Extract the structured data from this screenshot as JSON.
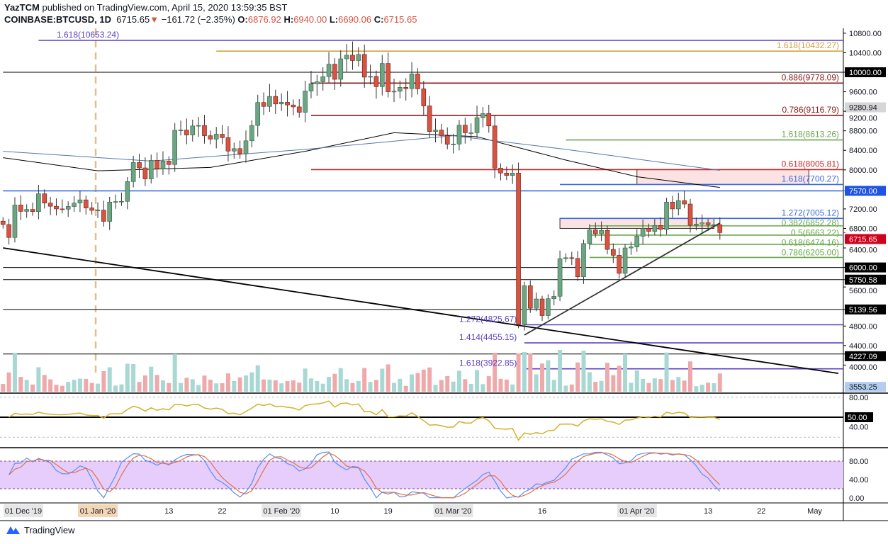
{
  "header": {
    "author": "YazTCM",
    "published": "published on TradingView.com, April 15, 2020 13:59:35 BST",
    "symbol": "COINBASE:BTCUSD, 1D",
    "last": "6715.65",
    "change": "−161.72 (−2.35%)",
    "o_label": "O:",
    "o": "6876.92",
    "h_label": "H:",
    "h": "6940.00",
    "l_label": "L:",
    "l": "6690.06",
    "c_label": "C:",
    "c": "6715.65"
  },
  "footer": {
    "brand": "TradingView"
  },
  "colors": {
    "up": "#6ba583",
    "down": "#d75442",
    "vol_up": "#a8d8d4",
    "vol_down": "#f0a9ab",
    "rsi": "#d4b12b",
    "stoch_k": "#5b8ff0",
    "stoch_d": "#e0704a",
    "stoch_band": "#e6cdfb"
  },
  "chart_data": {
    "type": "candlestick",
    "ylim": [
      3450,
      10900
    ],
    "start_date": "2019-12-16",
    "close": [
      6880,
      6615,
      7280,
      7150,
      7190,
      7145,
      7510,
      7320,
      7255,
      7200,
      7195,
      7250,
      7320,
      7385,
      7220,
      7170,
      7175,
      6945,
      7340,
      7350,
      7355,
      7760,
      8150,
      8040,
      7815,
      8195,
      8020,
      8180,
      8110,
      8810,
      8815,
      8715,
      8900,
      8910,
      8700,
      8630,
      8730,
      8660,
      8385,
      8435,
      8330,
      8595,
      8910,
      9380,
      9300,
      9505,
      9350,
      9385,
      9330,
      9290,
      9180,
      9615,
      9765,
      9805,
      9910,
      10165,
      9855,
      10275,
      10350,
      10240,
      10365,
      9900,
      9915,
      9705,
      10180,
      9600,
      9610,
      9690,
      9665,
      9965,
      9660,
      9310,
      8785,
      8815,
      8700,
      8525,
      8530,
      8915,
      8760,
      8760,
      9070,
      9155,
      8900,
      8035,
      7935,
      7885,
      7935,
      4830,
      5625,
      5165,
      5355,
      5015,
      5360,
      5410,
      6180,
      6200,
      6185,
      5810,
      6490,
      6770,
      6690,
      6760,
      6370,
      6250,
      5880,
      6400,
      6420,
      6640,
      6800,
      6740,
      6860,
      6780,
      7340,
      7200,
      7370,
      7300,
      6865,
      6890,
      6915,
      6876.92,
      6876.92,
      6715.65
    ],
    "x_ticks": [
      {
        "label": "01 Dec '19",
        "date": "2019-11-19"
      },
      {
        "label": "01 Jan '20",
        "date": "2020-01-01"
      },
      {
        "label": "13",
        "date": "2020-01-13"
      },
      {
        "label": "22",
        "date": "2020-01-22"
      },
      {
        "label": "01 Feb '20",
        "date": "2020-02-01"
      },
      {
        "label": "10",
        "date": "2020-02-10"
      },
      {
        "label": "19",
        "date": "2020-02-19"
      },
      {
        "label": "01 Mar '20",
        "date": "2020-03-01"
      },
      {
        "label": "16",
        "date": "2020-03-16"
      },
      {
        "label": "01 Apr '20",
        "date": "2020-04-01"
      },
      {
        "label": "13",
        "date": "2020-04-13"
      },
      {
        "label": "22",
        "date": "2020-04-22"
      },
      {
        "label": "May",
        "date": "2020-05-01"
      }
    ],
    "y_ticks": [
      "10800.00",
      "10400.00",
      "9600.00",
      "9200.00",
      "8800.00",
      "8400.00",
      "8000.00",
      "7200.00",
      "6800.00",
      "6400.00",
      "5600.00",
      "4800.00",
      "4400.00",
      "4000.00"
    ],
    "price_badges": [
      {
        "price": 10000,
        "label": "10000.00",
        "bg": "#000000",
        "fg": "#ffffff"
      },
      {
        "price": 9280.94,
        "label": "9280.94",
        "bg": "#d6d6d6",
        "fg": "#131722"
      },
      {
        "price": 7570,
        "label": "7570.00",
        "bg": "#1e53e5",
        "fg": "#ffffff"
      },
      {
        "price": 6715.65,
        "label": "6715.65",
        "bg": "#d0021b",
        "fg": "#ffffff"
      },
      {
        "price": 6000,
        "label": "6000.00",
        "bg": "#000000",
        "fg": "#ffffff"
      },
      {
        "price": 5750.58,
        "label": "5750.58",
        "bg": "#000000",
        "fg": "#ffffff"
      },
      {
        "price": 5139.56,
        "label": "5139.56",
        "bg": "#000000",
        "fg": "#ffffff"
      },
      {
        "price": 4227.09,
        "label": "4227.09",
        "bg": "#000000",
        "fg": "#ffffff"
      },
      {
        "price": 3553.25,
        "label": "3553.25",
        "bg": "#b2cdef",
        "fg": "#131722"
      }
    ],
    "levels": [
      {
        "price": 10653.24,
        "label": "1.618(10653.24)",
        "color": "#5c3fc4",
        "from": "2019-12-22",
        "label_side": "left"
      },
      {
        "price": 10432.27,
        "label": "1.618(10432.27)",
        "color": "#d4a23a",
        "from": "2020-01-21",
        "label_side": "right"
      },
      {
        "price": 10000,
        "label": "",
        "color": "#000000",
        "from": "2019-12-16",
        "label_side": "right"
      },
      {
        "price": 9778.09,
        "label": "0.886(9778.09)",
        "color": "#8b1a1a",
        "from": "2020-02-06",
        "label_side": "right"
      },
      {
        "price": 9116.79,
        "label": "0.786(9116.79)",
        "color": "#8b1a1a",
        "from": "2020-02-06",
        "label_side": "right"
      },
      {
        "price": 8613.26,
        "label": "1.618(8613.26)",
        "color": "#6aa84f",
        "from": "2020-03-20",
        "label_side": "right"
      },
      {
        "price": 8005.81,
        "label": "0.618(8005.81)",
        "color": "#c62828",
        "from": "2020-02-06",
        "label_side": "right"
      },
      {
        "price": 7700.27,
        "label": "1.618(7700.27)",
        "color": "#3d6be0",
        "from": "2020-03-19",
        "label_side": "right"
      },
      {
        "price": 7570,
        "label": "",
        "color": "#3d6be0",
        "from": "2019-12-16",
        "label_side": "right"
      },
      {
        "price": 7005.12,
        "label": "1.272(7005.12)",
        "color": "#3d6be0",
        "from": "2020-03-19",
        "label_side": "right"
      },
      {
        "price": 6852.28,
        "label": "0.382(6852.28)",
        "color": "#6aa84f",
        "from": "2020-03-24",
        "label_side": "right"
      },
      {
        "price": 6663.22,
        "label": "0.5(6663.22)",
        "color": "#6aa84f",
        "from": "2020-03-24",
        "label_side": "right"
      },
      {
        "price": 6474.16,
        "label": "0.618(6474.16)",
        "color": "#6aa84f",
        "from": "2020-03-24",
        "label_side": "right"
      },
      {
        "price": 6205.0,
        "label": "0.786(6205.00)",
        "color": "#6aa84f",
        "from": "2020-03-24",
        "label_side": "right"
      },
      {
        "price": 6000,
        "label": "",
        "color": "#000000",
        "from": "2019-12-16",
        "label_side": "right"
      },
      {
        "price": 5750.58,
        "label": "",
        "color": "#000000",
        "from": "2019-12-16",
        "label_side": "right"
      },
      {
        "price": 5139.56,
        "label": "",
        "color": "#000000",
        "from": "2019-12-16",
        "label_side": "right"
      },
      {
        "price": 4825.67,
        "label": "1.272(4825.67)",
        "color": "#5c3fc4",
        "from": "2020-03-13",
        "label_side": "left"
      },
      {
        "price": 4455.15,
        "label": "1.414(4455.15)",
        "color": "#5c3fc4",
        "from": "2020-03-13",
        "label_side": "left"
      },
      {
        "price": 4227.09,
        "label": "",
        "color": "#000000",
        "from": "2019-12-16",
        "label_side": "right"
      },
      {
        "price": 3922.85,
        "label": "1.618(3922.85)",
        "color": "#5c3fc4",
        "from": "2020-03-13",
        "label_side": "left"
      }
    ],
    "zones": [
      {
        "from": "2020-04-01",
        "to": "2020-04-30",
        "low": 7700.27,
        "high": 8005.81
      },
      {
        "from": "2020-03-19",
        "to": "2020-04-14",
        "low": 6800,
        "high": 7005.12
      }
    ],
    "trendlines": [
      {
        "from": [
          "2019-12-16",
          6400
        ],
        "to": [
          "2020-05-05",
          3830
        ],
        "color": "#000000"
      },
      {
        "from": [
          "2020-03-13",
          4615
        ],
        "to": [
          "2020-04-15",
          6910
        ],
        "color": "#333333"
      }
    ],
    "moving_averages": [
      {
        "color": "#000000",
        "points": [
          [
            "2019-12-16",
            8250
          ],
          [
            "2020-01-01",
            7980
          ],
          [
            "2020-01-20",
            8050
          ],
          [
            "2020-02-05",
            8380
          ],
          [
            "2020-02-20",
            8760
          ],
          [
            "2020-03-05",
            8680
          ],
          [
            "2020-03-20",
            8200
          ],
          [
            "2020-04-01",
            7860
          ],
          [
            "2020-04-15",
            7640
          ]
        ]
      },
      {
        "color": "#5577aa",
        "points": [
          [
            "2019-12-16",
            8380
          ],
          [
            "2020-01-10",
            8180
          ],
          [
            "2020-02-05",
            8420
          ],
          [
            "2020-03-01",
            8700
          ],
          [
            "2020-03-20",
            8420
          ],
          [
            "2020-04-15",
            7990
          ]
        ]
      }
    ],
    "rsi": {
      "ticks": [
        "80.00",
        "40.00"
      ],
      "badge": "50.00",
      "levels": [
        80,
        50,
        20
      ]
    },
    "stoch_rsi": {
      "ticks": [
        "80.00",
        "40.00",
        "0.00"
      ],
      "band": [
        20,
        80
      ]
    }
  }
}
